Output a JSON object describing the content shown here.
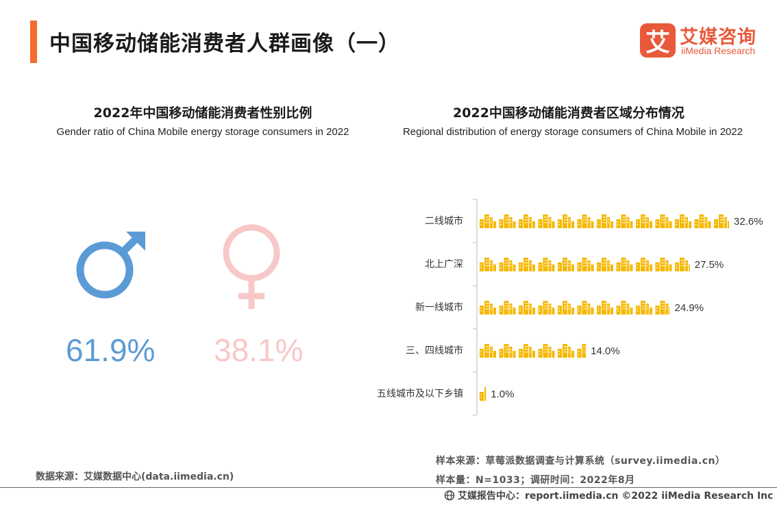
{
  "header": {
    "title": "中国移动储能消费者人群画像（一）",
    "logo_cn": "艾媒咨询",
    "logo_en": "iiMedia Research",
    "logo_glyph": "艾"
  },
  "gender": {
    "title": "2022年中国移动储能消费者性别比例",
    "subtitle": "Gender ratio of China Mobile energy storage consumers in 2022"
  },
  "region": {
    "title": "2022中国移动储能消费者区域分布情况",
    "subtitle": "Regional distribution of energy storage consumers of China Mobile in 2022"
  },
  "chart_data": [
    {
      "type": "pie",
      "categories": [
        "male-icon",
        "female-icon"
      ],
      "values": [
        61.9,
        38.1
      ],
      "value_labels": [
        "61.9%",
        "38.1%"
      ],
      "colors": [
        "#5b9bd5",
        "#f8c7c7"
      ]
    },
    {
      "type": "bar",
      "orientation": "horizontal",
      "categories": [
        "二线城市",
        "北上广深",
        "新一线城市",
        "三、四线城市",
        "五线城市及以下乡镇"
      ],
      "values": [
        32.6,
        27.5,
        24.9,
        14.0,
        1.0
      ],
      "value_labels": [
        "32.6%",
        "27.5%",
        "24.9%",
        "14.0%",
        "1.0%"
      ],
      "bar_color": "#f5b800",
      "icon": "building-icon"
    }
  ],
  "footer": {
    "source_left": "数据来源：艾媒数据中心(data.iimedia.cn)",
    "sample_source": "样本来源：草莓派数据调查与计算系统（survey.iimedia.cn）",
    "sample_size": "样本量：N=1033；调研时间：2022年8月",
    "copyright": "艾媒报告中心：report.iimedia.cn  ©2022  iiMedia Research  Inc"
  }
}
